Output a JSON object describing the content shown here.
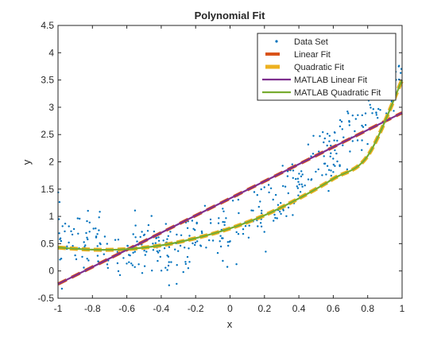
{
  "chart_data": {
    "type": "scatter",
    "title": "Polynomial Fit",
    "xlabel": "x",
    "ylabel": "y",
    "xlim": [
      -1,
      1
    ],
    "ylim": [
      -0.5,
      4.5
    ],
    "xticks": [
      -1,
      -0.8,
      -0.6,
      -0.4,
      -0.2,
      0,
      0.2,
      0.4,
      0.6,
      0.8,
      1
    ],
    "yticks": [
      -0.5,
      0,
      0.5,
      1,
      1.5,
      2,
      2.5,
      3,
      3.5,
      4,
      4.5
    ],
    "xtick_labels": [
      "-1",
      "-0.8",
      "-0.6",
      "-0.4",
      "-0.2",
      "0",
      "0.2",
      "0.4",
      "0.6",
      "0.8",
      "1"
    ],
    "ytick_labels": [
      "-0.5",
      "0",
      "0.5",
      "1",
      "1.5",
      "2",
      "2.5",
      "3",
      "3.5",
      "4",
      "4.5"
    ],
    "legend_position": "top-right",
    "grid": false,
    "series": [
      {
        "name": "Data Set",
        "kind": "points",
        "color": "#0072BD",
        "n_points": 400,
        "x_range": [
          -1,
          1
        ],
        "trend": {
          "a2": 1.45,
          "a1": 1.55,
          "a0": 0.78
        },
        "noise_sd": 0.28
      },
      {
        "name": "Linear Fit",
        "kind": "line",
        "style": "dashed",
        "color": "#D95319",
        "x": [
          -1,
          1
        ],
        "y": [
          -0.24,
          2.9
        ]
      },
      {
        "name": "Quadratic Fit",
        "kind": "line",
        "style": "dashed",
        "color": "#EDB120",
        "x": [
          -1,
          -0.8,
          -0.6,
          -0.4,
          -0.2,
          0,
          0.2,
          0.4,
          0.6,
          0.8,
          1
        ],
        "y": [
          0.43,
          0.39,
          0.4,
          0.47,
          0.6,
          0.78,
          1.02,
          1.33,
          1.69,
          2.11,
          3.5
        ]
      },
      {
        "name": "MATLAB Linear Fit",
        "kind": "line",
        "style": "solid",
        "color": "#7E2F8E",
        "x": [
          -1,
          1
        ],
        "y": [
          -0.24,
          2.9
        ]
      },
      {
        "name": "MATLAB Quadratic Fit",
        "kind": "line",
        "style": "solid",
        "color": "#77AC30",
        "x": [
          -1,
          -0.8,
          -0.6,
          -0.4,
          -0.2,
          0,
          0.2,
          0.4,
          0.6,
          0.8,
          1
        ],
        "y": [
          0.43,
          0.39,
          0.4,
          0.47,
          0.6,
          0.78,
          1.02,
          1.33,
          1.69,
          2.11,
          3.5
        ]
      }
    ]
  }
}
